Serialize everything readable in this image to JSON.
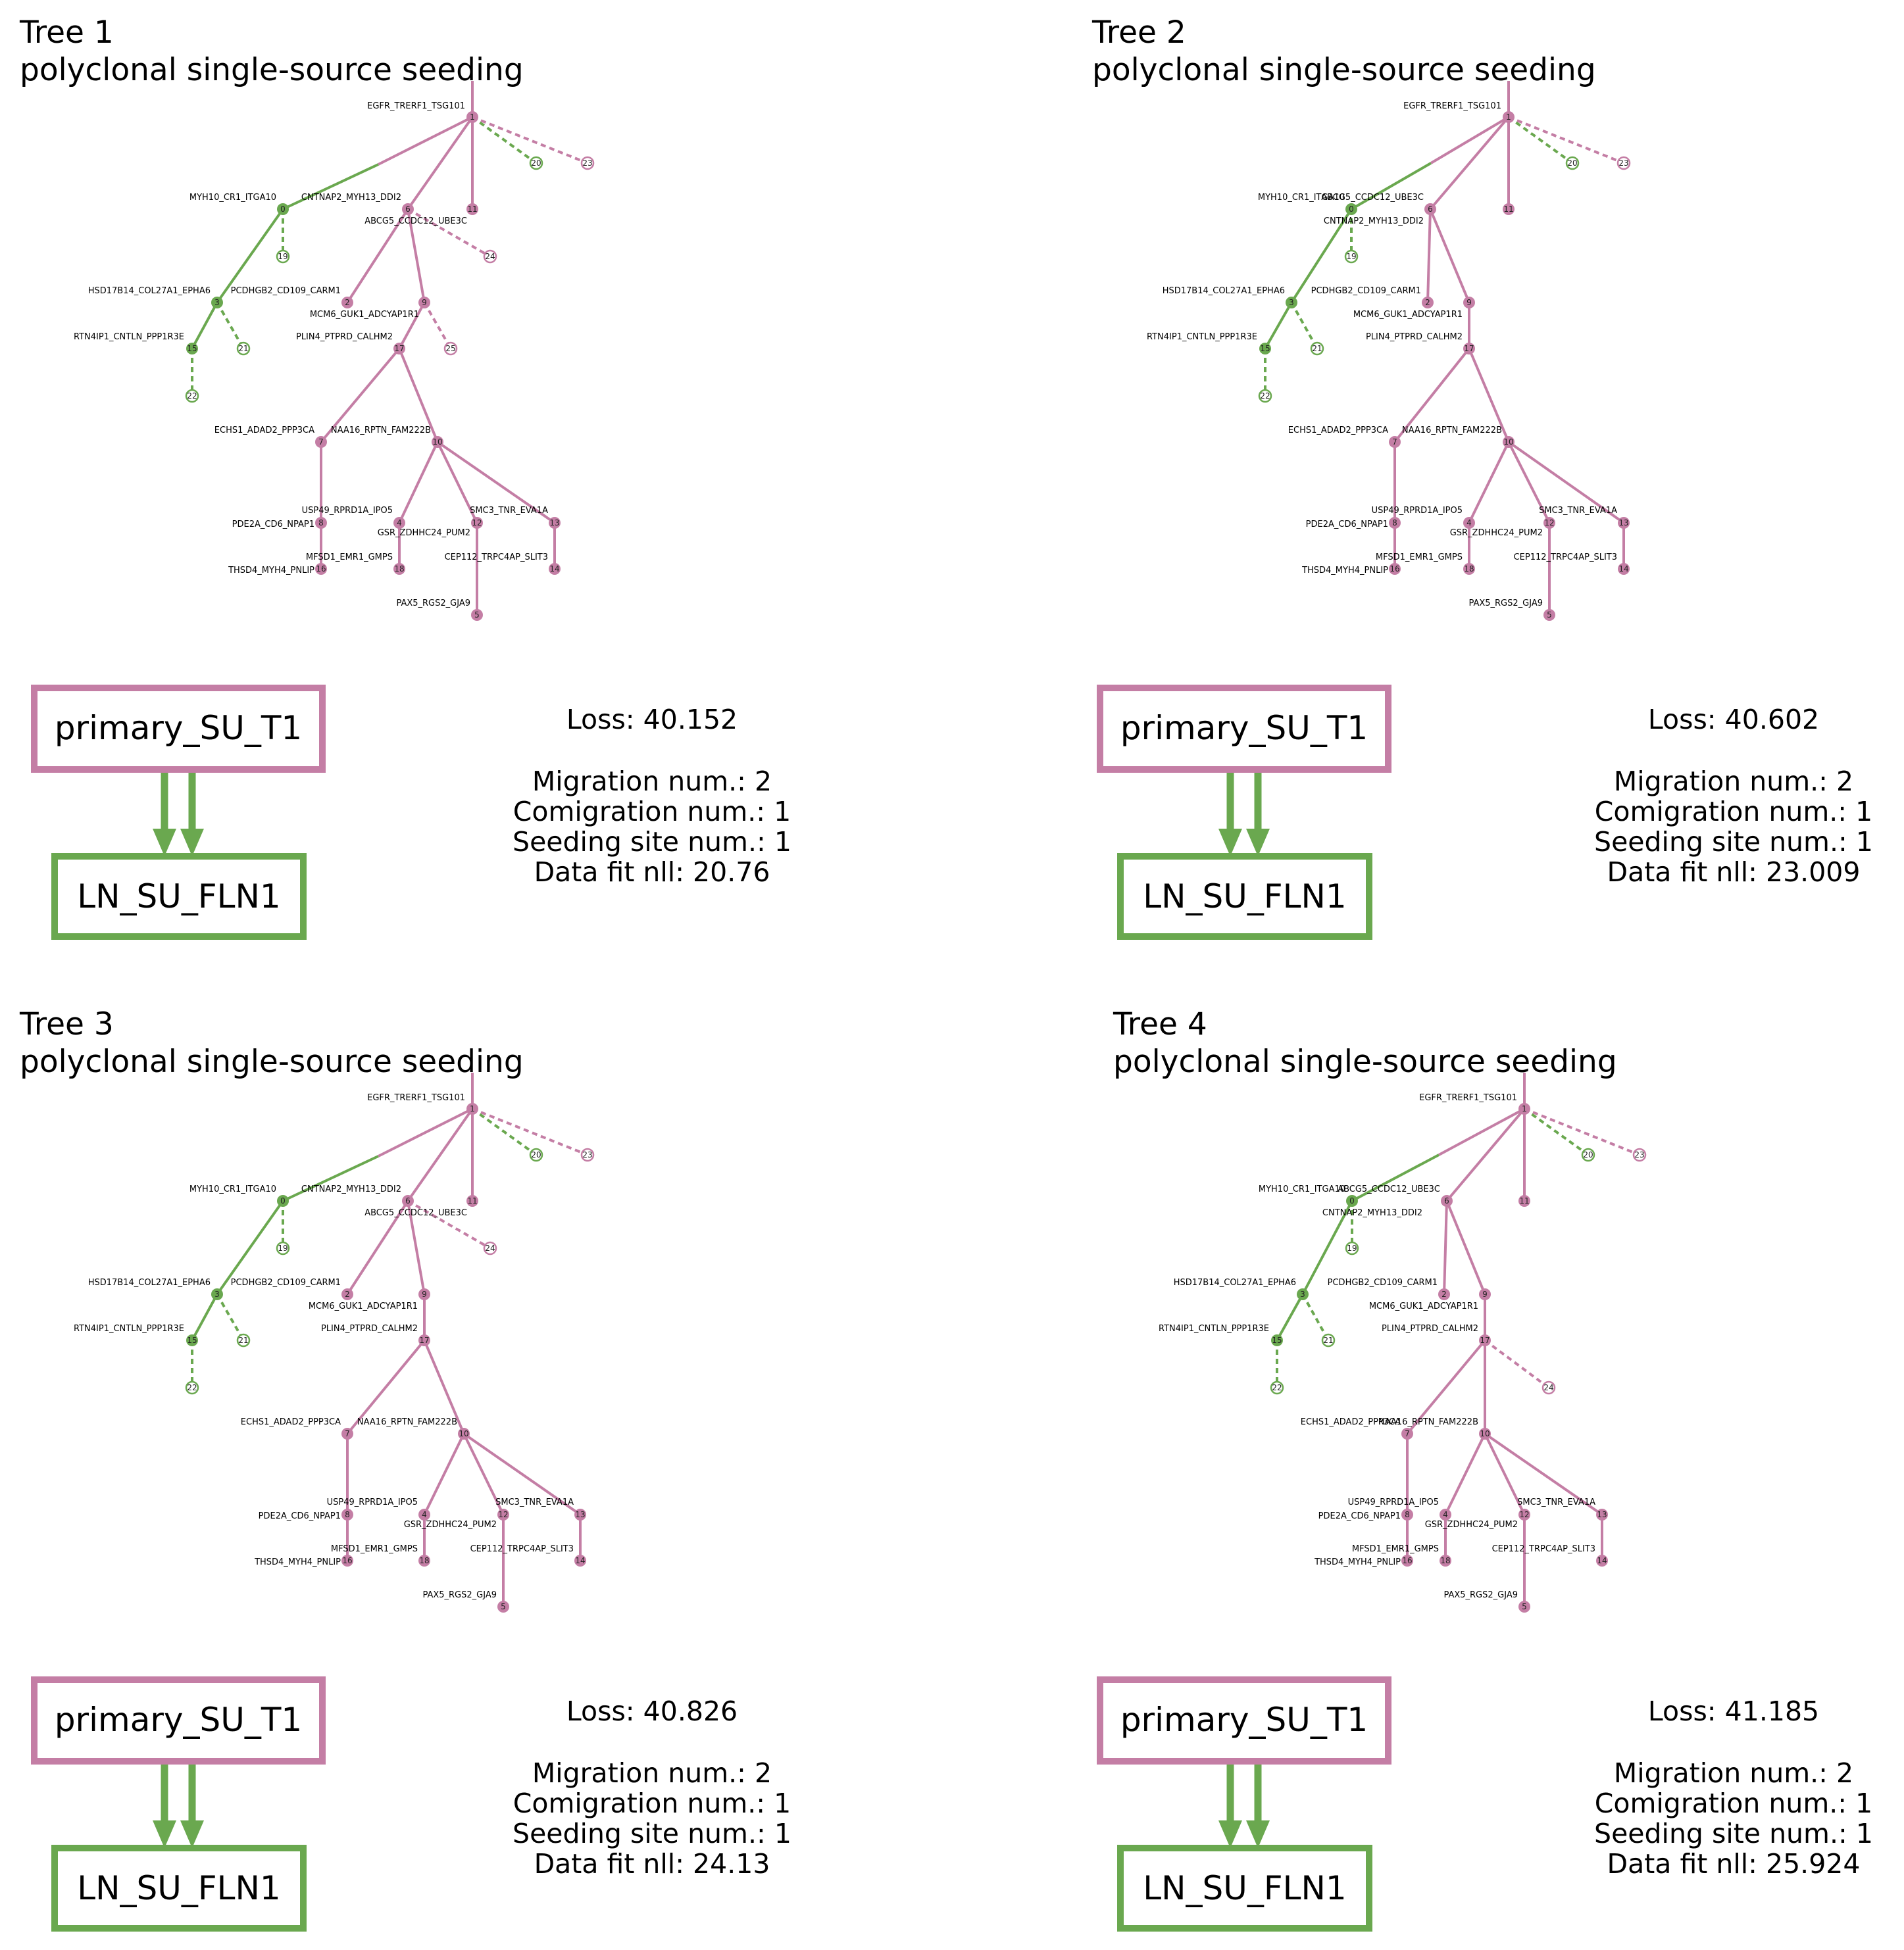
{
  "colors": {
    "primary": "#c47ea5",
    "metastasis": "#6aa84f",
    "text": "#000000",
    "background": "#ffffff"
  },
  "edge_styles": {
    "solid": "migration-free branch",
    "dashed": "leaf attachment"
  },
  "panels": [
    {
      "title": "Tree 1",
      "subtitle": "polyclonal single-source seeding",
      "nodes": [
        {
          "id": "1",
          "label": "EGFR_TRERF1_TSG101",
          "site": "primary"
        },
        {
          "id": "20",
          "label": "",
          "site": "metastasis",
          "observed": true
        },
        {
          "id": "23",
          "label": "",
          "site": "primary",
          "observed": true
        },
        {
          "id": "0",
          "label": "MYH10_CR1_ITGA10",
          "site": "metastasis"
        },
        {
          "id": "6",
          "label": "CNTNAP2_MYH13_DDI2",
          "site": "primary"
        },
        {
          "id": "11",
          "label": "",
          "site": "primary"
        },
        {
          "id": "19",
          "label": "",
          "site": "metastasis",
          "observed": true
        },
        {
          "id": "24",
          "label": "",
          "site": "primary",
          "observed": true
        },
        {
          "id": "3",
          "label": "HSD17B14_COL27A1_EPHA6",
          "site": "metastasis"
        },
        {
          "id": "2",
          "label": "PCDHGB2_CD109_CARM1",
          "site": "primary"
        },
        {
          "id": "9",
          "label": "ABCG5_CCDC12_UBE3C",
          "site": "primary"
        },
        {
          "id": "21",
          "label": "",
          "site": "metastasis",
          "observed": true
        },
        {
          "id": "15",
          "label": "RTN4IP1_CNTLN_PPP1R3E",
          "site": "metastasis"
        },
        {
          "id": "17",
          "label": "MCM6_GUK1_ADCYAP1R1",
          "site": "primary"
        },
        {
          "id": "25",
          "label": "",
          "site": "primary",
          "observed": true
        },
        {
          "id": "22",
          "label": "",
          "site": "metastasis",
          "observed": true
        },
        {
          "id": "7",
          "label": "PLIN4_PTPRD_CALHM2",
          "site": "primary"
        },
        {
          "id": "10",
          "label": "ECHS1_ADAD2_PPP3CA",
          "site": "primary"
        },
        {
          "id": "8",
          "label": "NAA16_RPTN_FAM222B",
          "site": "primary"
        },
        {
          "id": "4",
          "label": "USP49_RPRD1A_IPO5",
          "site": "primary"
        },
        {
          "id": "12",
          "label": "GSR_ZDHHC24_PUM2",
          "site": "primary"
        },
        {
          "id": "13",
          "label": "SMC3_TNR_EVA1A",
          "site": "primary"
        },
        {
          "id": "16",
          "label": "PDE2A_CD6_NPAP1",
          "site": "primary"
        },
        {
          "id": "18",
          "label": "MFSD1_EMR1_GMPS",
          "site": "primary"
        },
        {
          "id": "14",
          "label": "CEP112_TRPC4AP_SLIT3",
          "site": "primary"
        },
        {
          "id": "5",
          "label": "THSD4_MYH4_PNLIP",
          "site": "primary"
        },
        {
          "id": "",
          "label": "PAX5_RGS2_GJA9",
          "site": "primary"
        }
      ],
      "migration_graph": {
        "source": "primary_SU_T1",
        "target": "LN_SU_FLN1",
        "edge_count": 2
      },
      "stats": {
        "loss": "Loss: 40.152",
        "migration": "Migration num.: 2",
        "comigration": "Comigration num.: 1",
        "seeding": "Seeding site num.: 1",
        "fit": "Data fit nll: 20.76"
      }
    },
    {
      "title": "Tree 2",
      "subtitle": "polyclonal single-source seeding",
      "nodes": [
        {
          "id": "1",
          "label": "EGFR_TRERF1_TSG101",
          "site": "primary"
        },
        {
          "id": "20",
          "label": "",
          "site": "metastasis",
          "observed": true
        },
        {
          "id": "23",
          "label": "",
          "site": "primary",
          "observed": true
        },
        {
          "id": "0",
          "label": "MYH10_CR1_ITGA10",
          "site": "metastasis"
        },
        {
          "id": "6",
          "label": "ABCG5_CCDC12_UBE3C",
          "site": "primary"
        },
        {
          "id": "11",
          "label": "",
          "site": "primary"
        },
        {
          "id": "19",
          "label": "CNTNAP2_MYH13_DDI2",
          "site": "metastasis",
          "observed": true
        },
        {
          "id": "3",
          "label": "HSD17B14_COL27A1_EPHA6",
          "site": "metastasis"
        },
        {
          "id": "2",
          "label": "PCDHGB2_CD109_CARM1",
          "site": "primary"
        },
        {
          "id": "9",
          "label": "MCM6_GUK1_ADCYAP1R1",
          "site": "primary"
        },
        {
          "id": "21",
          "label": "",
          "site": "metastasis",
          "observed": true
        },
        {
          "id": "15",
          "label": "RTN4IP1_CNTLN_PPP1R3E",
          "site": "metastasis"
        },
        {
          "id": "17",
          "label": "PLIN4_PTPRD_CALHM2",
          "site": "primary"
        },
        {
          "id": "22",
          "label": "",
          "site": "metastasis",
          "observed": true
        },
        {
          "id": "7",
          "label": "ECHS1_ADAD2_PPP3CA",
          "site": "primary"
        },
        {
          "id": "10",
          "label": "NAA16_RPTN_FAM222B",
          "site": "primary"
        },
        {
          "id": "8",
          "label": "USP49_RPRD1A_IPO5",
          "site": "primary"
        },
        {
          "id": "4",
          "label": "GSR_ZDHHC24_PUM2",
          "site": "primary"
        },
        {
          "id": "12",
          "label": "SMC3_TNR_EVA1A",
          "site": "primary"
        },
        {
          "id": "13",
          "label": "",
          "site": "primary"
        },
        {
          "id": "16",
          "label": "PDE2A_CD6_NPAP1",
          "site": "primary"
        },
        {
          "id": "18",
          "label": "MFSD1_EMR1_GMPS",
          "site": "primary"
        },
        {
          "id": "14",
          "label": "CEP112_TRPC4AP_SLIT3",
          "site": "primary"
        },
        {
          "id": "5",
          "label": "PAX5_RGS2_GJA9",
          "site": "primary"
        },
        {
          "id": "",
          "label": "THSD4_MYH4_PNLIP",
          "site": "primary"
        }
      ],
      "migration_graph": {
        "source": "primary_SU_T1",
        "target": "LN_SU_FLN1",
        "edge_count": 2
      },
      "stats": {
        "loss": "Loss: 40.602",
        "migration": "Migration num.: 2",
        "comigration": "Comigration num.: 1",
        "seeding": "Seeding site num.: 1",
        "fit": "Data fit nll: 23.009"
      }
    },
    {
      "title": "Tree 3",
      "subtitle": "polyclonal single-source seeding",
      "nodes": [
        {
          "id": "1",
          "label": "EGFR_TRERF1_TSG101",
          "site": "primary"
        },
        {
          "id": "20",
          "label": "",
          "site": "metastasis",
          "observed": true
        },
        {
          "id": "23",
          "label": "",
          "site": "primary",
          "observed": true
        },
        {
          "id": "0",
          "label": "MYH10_CR1_ITGA10",
          "site": "metastasis"
        },
        {
          "id": "6",
          "label": "CNTNAP2_MYH13_DDI2",
          "site": "primary"
        },
        {
          "id": "11",
          "label": "",
          "site": "primary"
        },
        {
          "id": "19",
          "label": "",
          "site": "metastasis",
          "observed": true
        },
        {
          "id": "24",
          "label": "ABCG5_CCDC12_UBE3C",
          "site": "primary",
          "observed": true
        },
        {
          "id": "3",
          "label": "HSD17B14_COL27A1_EPHA6",
          "site": "metastasis"
        },
        {
          "id": "2",
          "label": "PCDHGB2_CD109_CARM1",
          "site": "primary"
        },
        {
          "id": "9",
          "label": "MCM6_GUK1_ADCYAP1R1",
          "site": "primary"
        },
        {
          "id": "21",
          "label": "",
          "site": "metastasis",
          "observed": true
        },
        {
          "id": "15",
          "label": "RTN4IP1_CNTLN_PPP1R3E",
          "site": "metastasis"
        },
        {
          "id": "17",
          "label": "PLIN4_PTPRD_CALHM2",
          "site": "primary"
        },
        {
          "id": "22",
          "label": "",
          "site": "metastasis",
          "observed": true
        },
        {
          "id": "7",
          "label": "ECHS1_ADAD2_PPP3CA",
          "site": "primary"
        },
        {
          "id": "10",
          "label": "NAA16_RPTN_FAM222B",
          "site": "primary"
        },
        {
          "id": "8",
          "label": "USP49_RPRD1A_IPO5",
          "site": "primary"
        },
        {
          "id": "4",
          "label": "GSR_ZDHHC24_PUM2",
          "site": "primary"
        },
        {
          "id": "12",
          "label": "SMC3_TNR_EVA1A",
          "site": "primary"
        },
        {
          "id": "13",
          "label": "",
          "site": "primary"
        },
        {
          "id": "16",
          "label": "PDE2A_CD6_NPAP1",
          "site": "primary"
        },
        {
          "id": "18",
          "label": "MFSD1_EMR1_GMPS",
          "site": "primary"
        },
        {
          "id": "14",
          "label": "CEP112_TRPC4AP_SLIT3",
          "site": "primary"
        },
        {
          "id": "5",
          "label": "PAX5_RGS2_GJA9",
          "site": "primary"
        },
        {
          "id": "",
          "label": "THSD4_MYH4_PNLIP",
          "site": "primary"
        }
      ],
      "migration_graph": {
        "source": "primary_SU_T1",
        "target": "LN_SU_FLN1",
        "edge_count": 2
      },
      "stats": {
        "loss": "Loss: 40.826",
        "migration": "Migration num.: 2",
        "comigration": "Comigration num.: 1",
        "seeding": "Seeding site num.: 1",
        "fit": "Data fit nll: 24.13"
      }
    },
    {
      "title": "Tree 4",
      "subtitle": "polyclonal single-source seeding",
      "nodes": [
        {
          "id": "1",
          "label": "EGFR_TRERF1_TSG101",
          "site": "primary"
        },
        {
          "id": "20",
          "label": "",
          "site": "metastasis",
          "observed": true
        },
        {
          "id": "23",
          "label": "",
          "site": "primary",
          "observed": true
        },
        {
          "id": "0",
          "label": "MYH10_CR1_ITGA10",
          "site": "metastasis"
        },
        {
          "id": "6",
          "label": "ABCG5_CCDC12_UBE3C",
          "site": "primary"
        },
        {
          "id": "11",
          "label": "",
          "site": "primary"
        },
        {
          "id": "19",
          "label": "CNTNAP2_MYH13_DDI2",
          "site": "metastasis",
          "observed": true
        },
        {
          "id": "3",
          "label": "HSD17B14_COL27A1_EPHA6",
          "site": "metastasis"
        },
        {
          "id": "2",
          "label": "PCDHGB2_CD109_CARM1",
          "site": "primary"
        },
        {
          "id": "9",
          "label": "MCM6_GUK1_ADCYAP1R1",
          "site": "primary"
        },
        {
          "id": "21",
          "label": "",
          "site": "metastasis",
          "observed": true
        },
        {
          "id": "15",
          "label": "RTN4IP1_CNTLN_PPP1R3E",
          "site": "metastasis"
        },
        {
          "id": "17",
          "label": "PLIN4_PTPRD_CALHM2",
          "site": "primary"
        },
        {
          "id": "22",
          "label": "",
          "site": "metastasis",
          "observed": true
        },
        {
          "id": "24",
          "label": "",
          "site": "primary",
          "observed": true
        },
        {
          "id": "7",
          "label": "ECHS1_ADAD2_PPP3CA",
          "site": "primary"
        },
        {
          "id": "10",
          "label": "NAA16_RPTN_FAM222B",
          "site": "primary"
        },
        {
          "id": "8",
          "label": "USP49_RPRD1A_IPO5",
          "site": "primary"
        },
        {
          "id": "4",
          "label": "GSR_ZDHHC24_PUM2",
          "site": "primary"
        },
        {
          "id": "12",
          "label": "SMC3_TNR_EVA1A",
          "site": "primary"
        },
        {
          "id": "13",
          "label": "",
          "site": "primary"
        },
        {
          "id": "16",
          "label": "PDE2A_CD6_NPAP1",
          "site": "primary"
        },
        {
          "id": "18",
          "label": "MFSD1_EMR1_GMPS",
          "site": "primary"
        },
        {
          "id": "14",
          "label": "CEP112_TRPC4AP_SLIT3",
          "site": "primary"
        },
        {
          "id": "5",
          "label": "PAX5_RGS2_GJA9",
          "site": "primary"
        },
        {
          "id": "",
          "label": "THSD4_MYH4_PNLIP",
          "site": "primary"
        }
      ],
      "migration_graph": {
        "source": "primary_SU_T1",
        "target": "LN_SU_FLN1",
        "edge_count": 2
      },
      "stats": {
        "loss": "Loss: 41.185",
        "migration": "Migration num.: 2",
        "comigration": "Comigration num.: 1",
        "seeding": "Seeding site num.: 1",
        "fit": "Data fit nll: 25.924"
      }
    }
  ]
}
